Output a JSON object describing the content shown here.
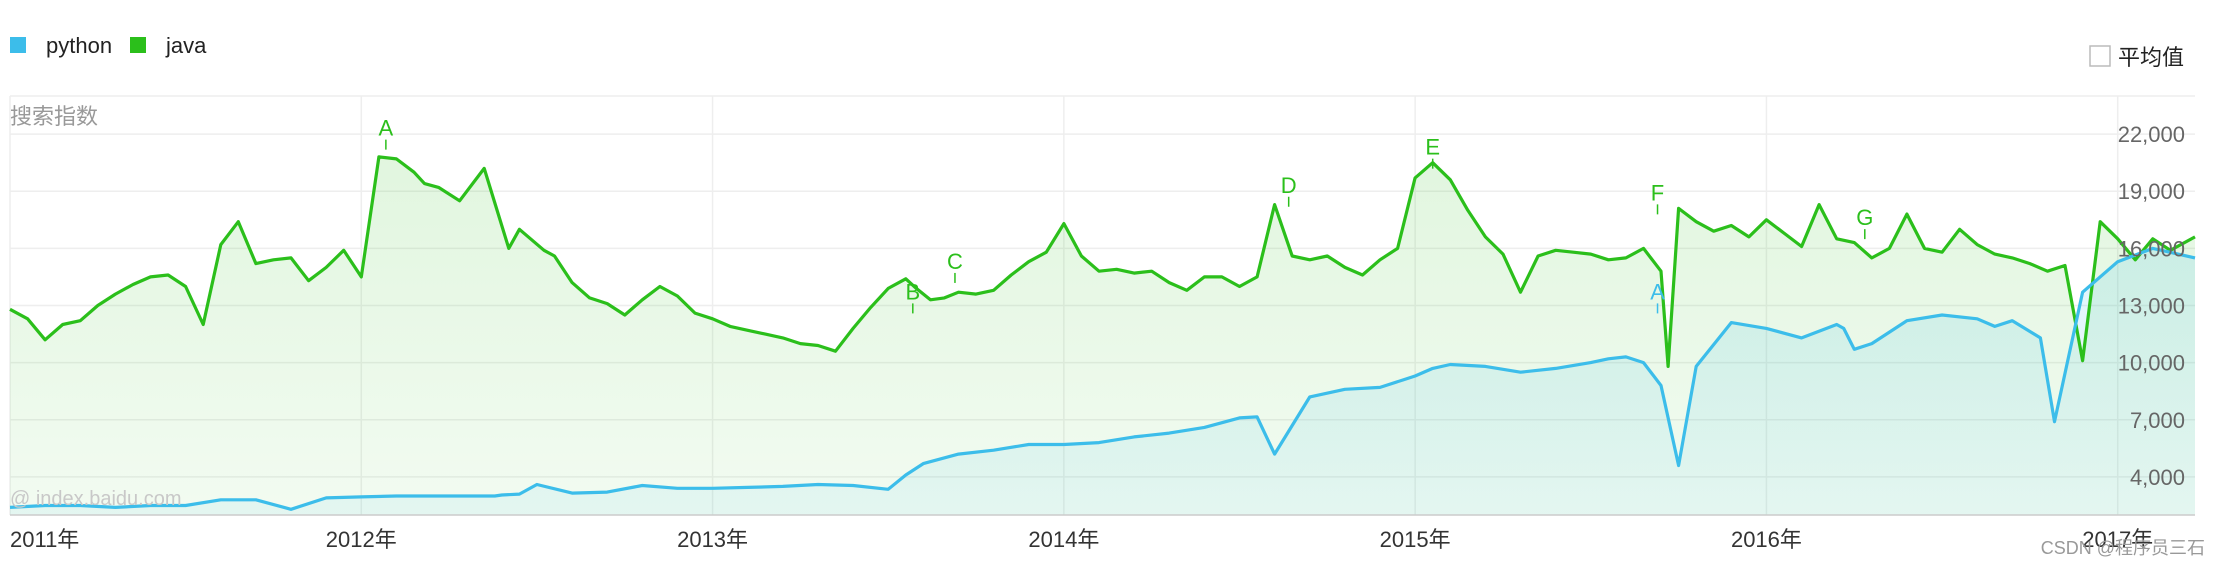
{
  "chart_data": {
    "type": "line",
    "ylabel": "搜索指数",
    "watermark": "@ index.baidu.com",
    "corner_text": "CSDN @程序员三石",
    "ylim": [
      2000,
      24000
    ],
    "y_ticks": [
      "4,000",
      "7,000",
      "10,000",
      "13,000",
      "16,000",
      "19,000",
      "22,000"
    ],
    "y_tick_values": [
      4000,
      7000,
      10000,
      13000,
      16000,
      19000,
      22000
    ],
    "x_ticks": [
      "2011年",
      "2012年",
      "2013年",
      "2014年",
      "2015年",
      "2016年",
      "2017年"
    ],
    "x_tick_values": [
      2011.0,
      2012.0,
      2013.0,
      2014.0,
      2015.0,
      2016.0,
      2017.0
    ],
    "xlim": [
      2011.0,
      2017.22
    ],
    "grid": true,
    "legend": "top-left",
    "average_checkbox": {
      "label": "平均值",
      "checked": false
    },
    "series": [
      {
        "name": "python",
        "color": "#3cbdea",
        "x": [
          2011.0,
          2011.1,
          2011.2,
          2011.3,
          2011.4,
          2011.5,
          2011.6,
          2011.7,
          2011.8,
          2011.9,
          2012.0,
          2012.1,
          2012.2,
          2012.3,
          2012.38,
          2012.4,
          2012.45,
          2012.5,
          2012.6,
          2012.7,
          2012.8,
          2012.9,
          2013.0,
          2013.1,
          2013.2,
          2013.3,
          2013.4,
          2013.5,
          2013.55,
          2013.6,
          2013.7,
          2013.8,
          2013.9,
          2014.0,
          2014.1,
          2014.2,
          2014.3,
          2014.4,
          2014.5,
          2014.55,
          2014.6,
          2014.7,
          2014.8,
          2014.9,
          2015.0,
          2015.05,
          2015.1,
          2015.2,
          2015.3,
          2015.4,
          2015.5,
          2015.55,
          2015.6,
          2015.65,
          2015.7,
          2015.75,
          2015.8,
          2015.9,
          2016.0,
          2016.1,
          2016.2,
          2016.22,
          2016.25,
          2016.3,
          2016.4,
          2016.5,
          2016.6,
          2016.65,
          2016.7,
          2016.78,
          2016.82,
          2016.9,
          2017.0,
          2017.1,
          2017.22
        ],
        "values": [
          2400,
          2500,
          2500,
          2400,
          2500,
          2500,
          2800,
          2800,
          2300,
          2900,
          2950,
          3000,
          3000,
          3000,
          3000,
          3050,
          3100,
          3600,
          3150,
          3200,
          3550,
          3400,
          3400,
          3450,
          3500,
          3600,
          3550,
          3350,
          4100,
          4700,
          5200,
          5400,
          5700,
          5700,
          5800,
          6100,
          6300,
          6600,
          7100,
          7150,
          5200,
          8200,
          8600,
          8700,
          9300,
          9700,
          9900,
          9800,
          9500,
          9700,
          10000,
          10200,
          10300,
          10000,
          8800,
          4600,
          9800,
          12100,
          11800,
          11300,
          12000,
          11800,
          10700,
          11000,
          12200,
          12500,
          12300,
          11900,
          12200,
          11300,
          6900,
          13700,
          15300,
          16000,
          15500
        ]
      },
      {
        "name": "java",
        "color": "#2bbf1b",
        "x": [
          2011.0,
          2011.05,
          2011.1,
          2011.15,
          2011.2,
          2011.25,
          2011.3,
          2011.35,
          2011.4,
          2011.45,
          2011.5,
          2011.55,
          2011.6,
          2011.65,
          2011.7,
          2011.75,
          2011.8,
          2011.85,
          2011.9,
          2011.95,
          2012.0,
          2012.05,
          2012.1,
          2012.15,
          2012.18,
          2012.22,
          2012.28,
          2012.35,
          2012.42,
          2012.45,
          2012.52,
          2012.55,
          2012.6,
          2012.65,
          2012.7,
          2012.75,
          2012.8,
          2012.85,
          2012.9,
          2012.95,
          2013.0,
          2013.05,
          2013.1,
          2013.15,
          2013.2,
          2013.25,
          2013.3,
          2013.35,
          2013.4,
          2013.45,
          2013.5,
          2013.55,
          2013.58,
          2013.62,
          2013.66,
          2013.7,
          2013.75,
          2013.8,
          2013.85,
          2013.9,
          2013.95,
          2014.0,
          2014.05,
          2014.1,
          2014.15,
          2014.2,
          2014.25,
          2014.3,
          2014.35,
          2014.4,
          2014.45,
          2014.5,
          2014.55,
          2014.6,
          2014.65,
          2014.7,
          2014.75,
          2014.8,
          2014.85,
          2014.9,
          2014.95,
          2015.0,
          2015.05,
          2015.1,
          2015.15,
          2015.2,
          2015.25,
          2015.3,
          2015.35,
          2015.4,
          2015.45,
          2015.5,
          2015.55,
          2015.6,
          2015.65,
          2015.7,
          2015.72,
          2015.75,
          2015.8,
          2015.85,
          2015.9,
          2015.95,
          2016.0,
          2016.05,
          2016.1,
          2016.15,
          2016.2,
          2016.25,
          2016.3,
          2016.35,
          2016.4,
          2016.45,
          2016.5,
          2016.55,
          2016.6,
          2016.65,
          2016.7,
          2016.75,
          2016.8,
          2016.85,
          2016.9,
          2016.95,
          2017.0,
          2017.05,
          2017.1,
          2017.15,
          2017.22
        ],
        "values": [
          12800,
          12300,
          11200,
          12000,
          12200,
          13000,
          13600,
          14100,
          14500,
          14600,
          14000,
          12000,
          16200,
          17400,
          15200,
          15400,
          15500,
          14300,
          15000,
          15900,
          14500,
          20800,
          20700,
          20000,
          19400,
          19200,
          18500,
          20200,
          16000,
          17000,
          15900,
          15600,
          14200,
          13400,
          13100,
          12500,
          13300,
          14000,
          13500,
          12600,
          12300,
          11900,
          11700,
          11500,
          11300,
          11000,
          10900,
          10600,
          11800,
          12900,
          13900,
          14400,
          13900,
          13300,
          13400,
          13700,
          13600,
          13800,
          14600,
          15300,
          15800,
          17300,
          15600,
          14800,
          14900,
          14700,
          14800,
          14200,
          13800,
          14500,
          14500,
          14000,
          14500,
          18300,
          15600,
          15400,
          15600,
          15000,
          14600,
          15400,
          16000,
          19700,
          20500,
          19600,
          18000,
          16600,
          15700,
          13700,
          15600,
          15900,
          15800,
          15700,
          15400,
          15500,
          16000,
          14800,
          9800,
          18100,
          17400,
          16900,
          17200,
          16600,
          17500,
          16800,
          16100,
          18300,
          16500,
          16300,
          15500,
          16000,
          17800,
          16000,
          15800,
          17000,
          16200,
          15700,
          15500,
          15200,
          14800,
          15100,
          10100,
          17400,
          16500,
          15400,
          16500,
          15900,
          16600
        ]
      }
    ],
    "annotations": [
      {
        "label": "A",
        "series": "java",
        "x": 2012.07,
        "value": 21500
      },
      {
        "label": "B",
        "series": "java",
        "x": 2013.57,
        "value": 12900
      },
      {
        "label": "C",
        "series": "java",
        "x": 2013.69,
        "value": 14500
      },
      {
        "label": "D",
        "series": "java",
        "x": 2014.64,
        "value": 18500
      },
      {
        "label": "E",
        "series": "java",
        "x": 2015.05,
        "value": 20500
      },
      {
        "label": "F",
        "series": "java",
        "x": 2015.69,
        "value": 18100
      },
      {
        "label": "A",
        "series": "python",
        "x": 2015.69,
        "value": 12900
      },
      {
        "label": "G",
        "series": "java",
        "x": 2016.28,
        "value": 16800
      }
    ]
  }
}
